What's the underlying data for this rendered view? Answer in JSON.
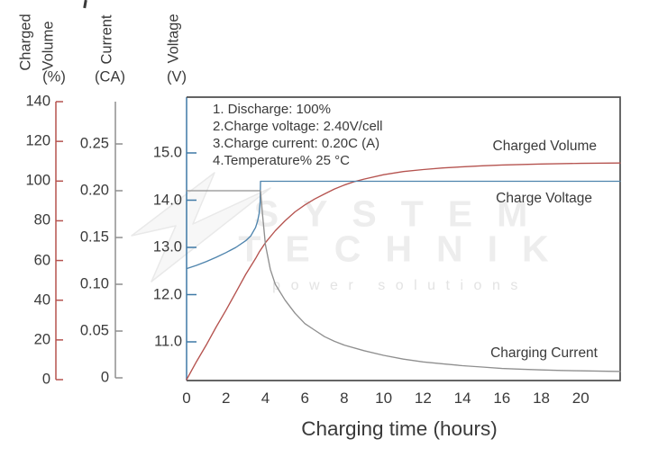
{
  "figure": {
    "watermark": {
      "line1": "SYSTEM",
      "line2": "TECHNIK",
      "line3": "power solutions"
    }
  },
  "chart_data": {
    "type": "line",
    "title": "",
    "xlabel": "Charging time (hours)",
    "x_range": [
      0,
      22
    ],
    "x_ticks": {
      "values": [
        0,
        2,
        4,
        6,
        8,
        10,
        12,
        14,
        16,
        18,
        20
      ],
      "labels": [
        "0",
        "2",
        "4",
        "6",
        "8",
        "10",
        "12",
        "14",
        "16",
        "18",
        "20"
      ]
    },
    "grid": false,
    "legend_position": "inline-right",
    "frame_color": "#4f4f4f",
    "axes": [
      {
        "id": "charged_volume",
        "label": "Charged",
        "label2": "Volume",
        "unit": "(%)",
        "color": "#b5534f",
        "range": [
          0,
          140
        ],
        "tick_values": [
          0,
          20,
          40,
          60,
          80,
          100,
          120,
          140
        ],
        "tick_labels": [
          "0",
          "20",
          "40",
          "60",
          "80",
          "100",
          "120",
          "140"
        ]
      },
      {
        "id": "current",
        "label": "Current",
        "label2": "",
        "unit": "(CA)",
        "color": "#8f8f8f",
        "range": [
          0,
          0.29
        ],
        "tick_values": [
          0,
          0.05,
          0.1,
          0.15,
          0.2,
          0.25
        ],
        "tick_labels": [
          "0",
          "0.05",
          "0.10",
          "0.15",
          "0.20",
          "0.25"
        ]
      },
      {
        "id": "voltage",
        "label": "Voltage",
        "label2": "",
        "unit": "(V)",
        "color": "#3e79a6",
        "range": [
          10.4,
          16.0
        ],
        "tick_values": [
          11,
          12,
          13,
          14,
          15
        ],
        "tick_labels": [
          "11.0",
          "12.0",
          "13.0",
          "14.0",
          "15.0"
        ]
      }
    ],
    "annotations": [
      "1. Discharge: 100%",
      "2.Charge voltage: 2.40V/cell",
      "3.Charge current: 0.20C (A)",
      "4.Temperature% 25 °C"
    ],
    "series": [
      {
        "name": "Charged Volume",
        "axis": "charged_volume",
        "color": "#b5534f",
        "points": [
          [
            0,
            0
          ],
          [
            0.5,
            9
          ],
          [
            1,
            17.5
          ],
          [
            1.5,
            26.5
          ],
          [
            2,
            35
          ],
          [
            2.5,
            44
          ],
          [
            3,
            53
          ],
          [
            3.5,
            61
          ],
          [
            3.7,
            64.5
          ],
          [
            4,
            69
          ],
          [
            4.5,
            75
          ],
          [
            5,
            80
          ],
          [
            5.5,
            84.5
          ],
          [
            6,
            88
          ],
          [
            6.5,
            91
          ],
          [
            7,
            93.5
          ],
          [
            7.5,
            96
          ],
          [
            8,
            98
          ],
          [
            8.5,
            99.7
          ],
          [
            9,
            101
          ],
          [
            10,
            103.2
          ],
          [
            11,
            104.8
          ],
          [
            12,
            105.8
          ],
          [
            13,
            106.6
          ],
          [
            14,
            107.2
          ],
          [
            15,
            107.7
          ],
          [
            16,
            108.1
          ],
          [
            18,
            108.6
          ],
          [
            20,
            108.9
          ],
          [
            22,
            109.1
          ]
        ]
      },
      {
        "name": "Charge Voltage",
        "axis": "voltage",
        "color": "#4e84ad",
        "points": [
          [
            0,
            12.55
          ],
          [
            0.5,
            12.62
          ],
          [
            1,
            12.7
          ],
          [
            1.5,
            12.79
          ],
          [
            2,
            12.89
          ],
          [
            2.5,
            13.0
          ],
          [
            3,
            13.14
          ],
          [
            3.25,
            13.24
          ],
          [
            3.5,
            13.42
          ],
          [
            3.6,
            13.55
          ],
          [
            3.68,
            13.72
          ],
          [
            3.73,
            13.95
          ],
          [
            3.75,
            14.4
          ],
          [
            22,
            14.4
          ]
        ]
      },
      {
        "name": "Charging Current",
        "axis": "current",
        "color": "#8f8f8f",
        "points": [
          [
            0,
            0.2
          ],
          [
            3.75,
            0.2
          ],
          [
            3.85,
            0.175
          ],
          [
            4,
            0.142
          ],
          [
            4.25,
            0.116
          ],
          [
            4.5,
            0.1
          ],
          [
            5,
            0.083
          ],
          [
            5.5,
            0.069
          ],
          [
            6,
            0.058
          ],
          [
            6.5,
            0.051
          ],
          [
            7,
            0.044
          ],
          [
            7.5,
            0.039
          ],
          [
            8,
            0.035
          ],
          [
            9,
            0.029
          ],
          [
            10,
            0.024
          ],
          [
            11,
            0.02
          ],
          [
            12,
            0.017
          ],
          [
            13,
            0.015
          ],
          [
            14,
            0.013
          ],
          [
            15,
            0.0115
          ],
          [
            16,
            0.01
          ],
          [
            17,
            0.0092
          ],
          [
            18,
            0.0085
          ],
          [
            19,
            0.0079
          ],
          [
            20,
            0.0075
          ],
          [
            21,
            0.0071
          ],
          [
            22,
            0.0068
          ]
        ]
      }
    ]
  }
}
